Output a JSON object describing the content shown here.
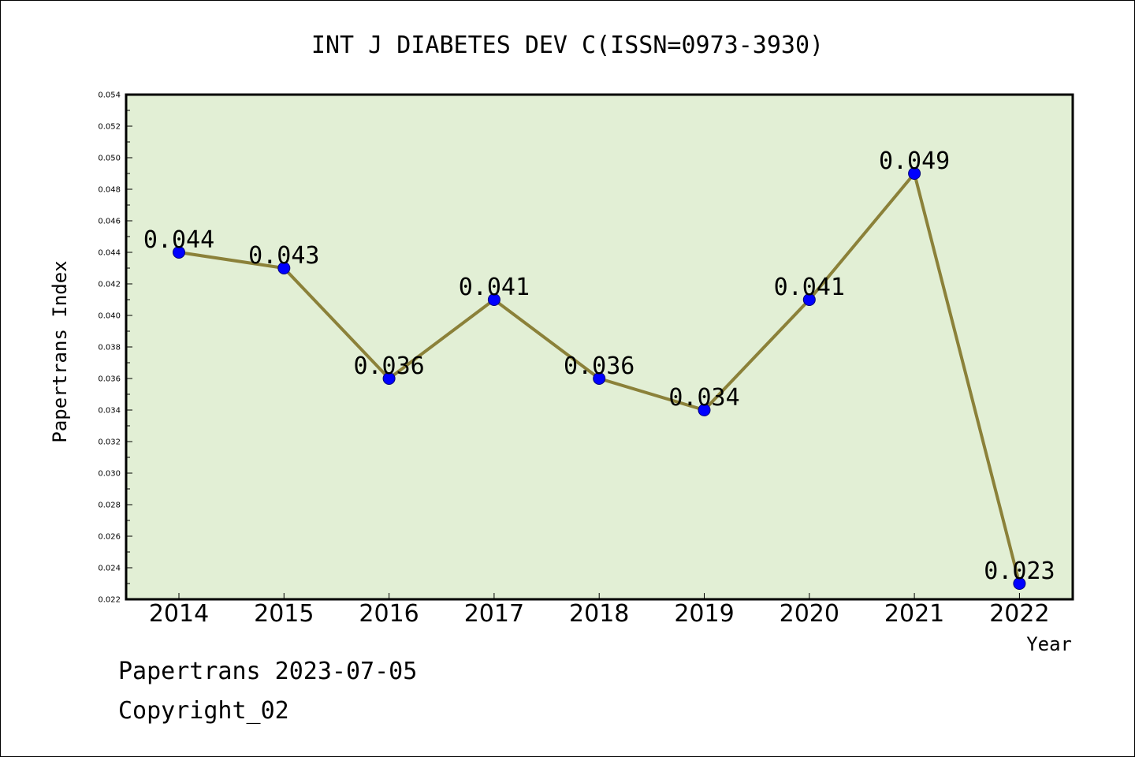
{
  "chart_data": {
    "type": "line",
    "title": "INT J DIABETES DEV C(ISSN=0973-3930)",
    "xlabel": "Year",
    "ylabel": "Papertrans Index",
    "categories": [
      "2014",
      "2015",
      "2016",
      "2017",
      "2018",
      "2019",
      "2020",
      "2021",
      "2022"
    ],
    "values": [
      0.044,
      0.043,
      0.036,
      0.041,
      0.036,
      0.034,
      0.041,
      0.049,
      0.023
    ],
    "data_labels": [
      "0.044",
      "0.043",
      "0.036",
      "0.041",
      "0.036",
      "0.034",
      "0.041",
      "0.049",
      "0.023"
    ],
    "ylim": [
      0.022,
      0.054
    ],
    "yticks": [
      "0.022",
      "0.024",
      "0.026",
      "0.028",
      "0.030",
      "0.032",
      "0.034",
      "0.036",
      "0.038",
      "0.040",
      "0.042",
      "0.044",
      "0.046",
      "0.048",
      "0.050",
      "0.052",
      "0.054"
    ],
    "grid": false,
    "colors": {
      "plot_background": "#e2efd5",
      "line": "#8b8139",
      "marker_fill": "#0000ff",
      "marker_edge": "#00007a"
    }
  },
  "footer": {
    "line1": "Papertrans 2023-07-05",
    "line2": "Copyright_02"
  }
}
